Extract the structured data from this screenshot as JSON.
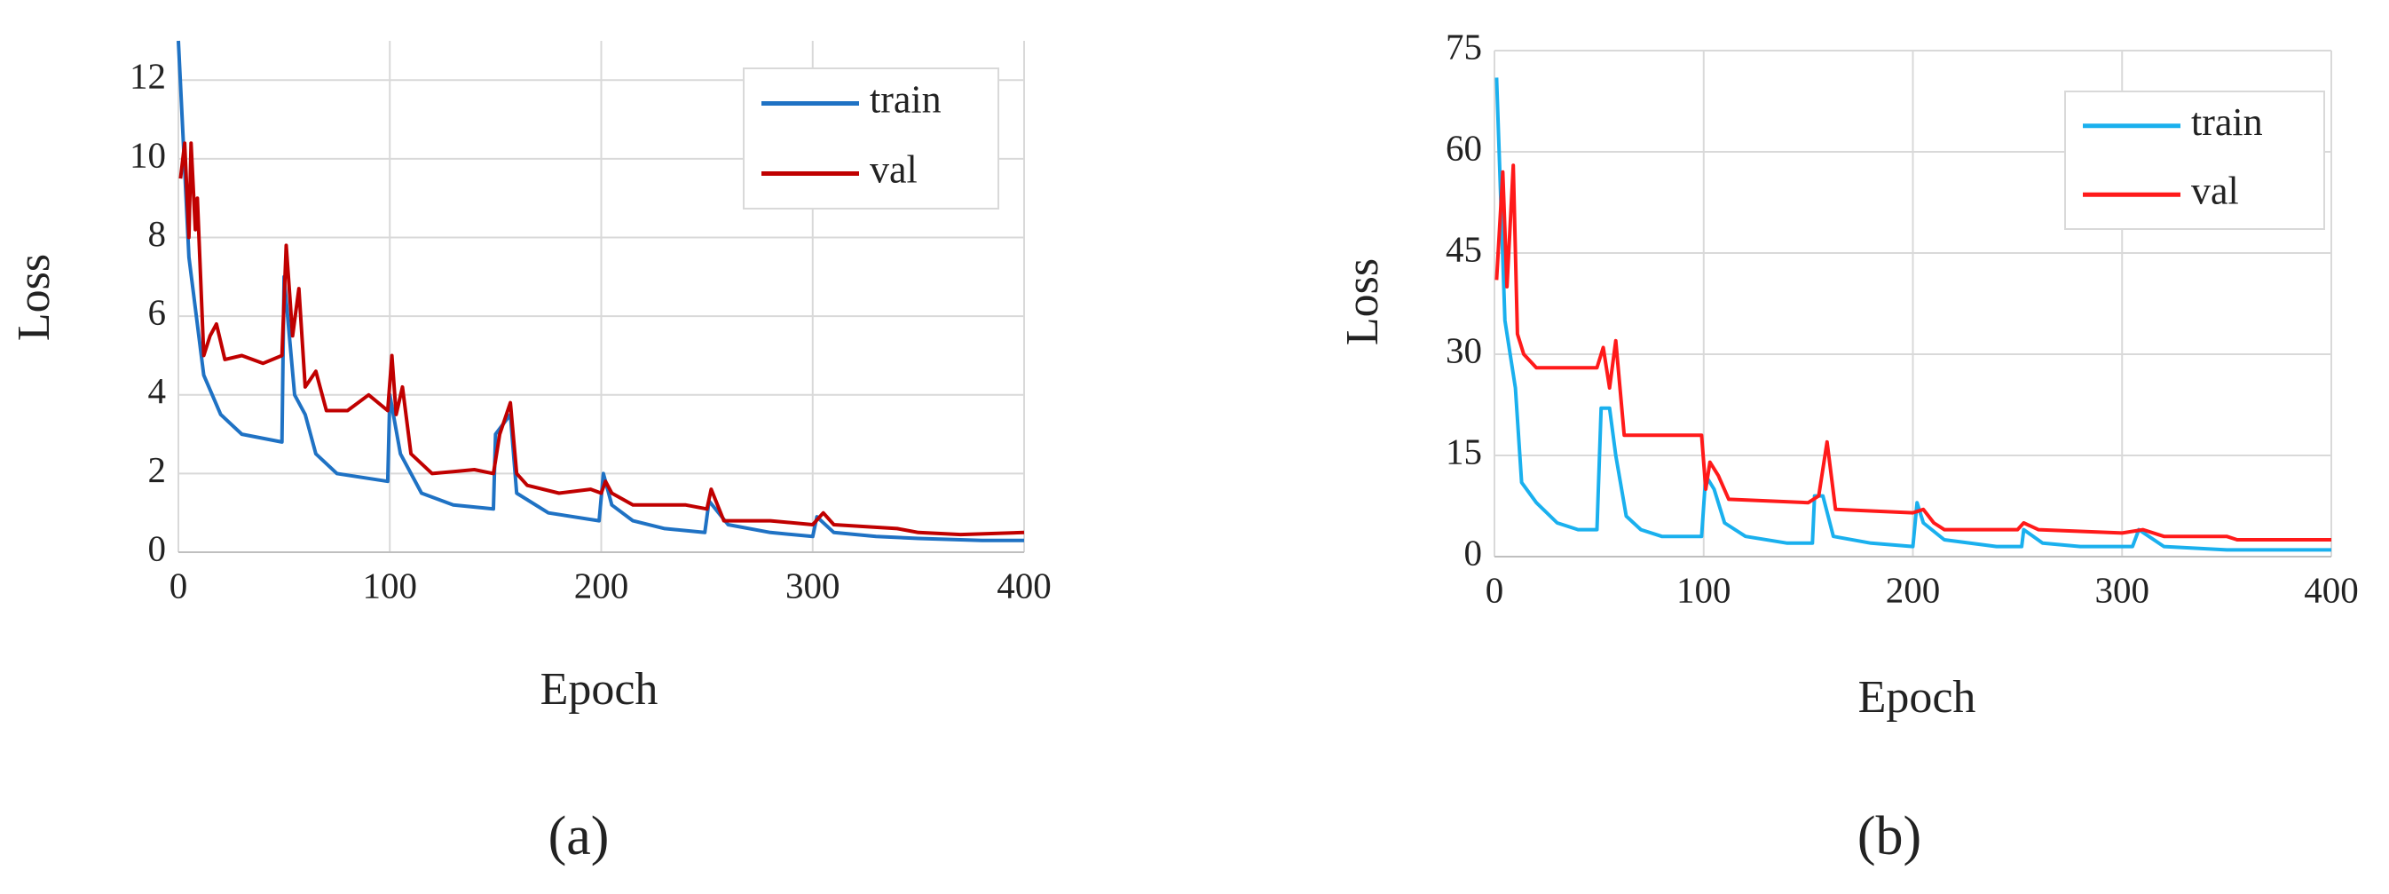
{
  "chart_data": [
    {
      "type": "line",
      "label": "(a)",
      "xlabel": "Epoch",
      "ylabel": "Loss",
      "xlim": [
        0,
        400
      ],
      "xticks": [
        0,
        100,
        200,
        300,
        400
      ],
      "ylim": [
        0,
        13
      ],
      "yticks": [
        0,
        2,
        4,
        6,
        8,
        10,
        12
      ],
      "grid": true,
      "legend": "upper right",
      "series": [
        {
          "name": "train",
          "color": "#1f72c4",
          "x": [
            0,
            5,
            12,
            20,
            30,
            49,
            50,
            55,
            60,
            65,
            75,
            99,
            100,
            105,
            115,
            130,
            149,
            150,
            157,
            160,
            175,
            199,
            201,
            205,
            215,
            230,
            249,
            251,
            260,
            280,
            300,
            302,
            310,
            330,
            350,
            380,
            400
          ],
          "values": [
            13,
            7.5,
            4.5,
            3.5,
            3,
            2.8,
            7,
            4,
            3.5,
            2.5,
            2,
            1.8,
            4,
            2.5,
            1.5,
            1.2,
            1.1,
            3,
            3.5,
            1.5,
            1,
            0.8,
            2,
            1.2,
            0.8,
            0.6,
            0.5,
            1.3,
            0.7,
            0.5,
            0.4,
            0.9,
            0.5,
            0.4,
            0.35,
            0.3,
            0.3
          ]
        },
        {
          "name": "val",
          "color": "#c00000",
          "x": [
            1,
            3,
            5,
            6,
            8,
            9,
            12,
            15,
            18,
            22,
            30,
            40,
            49,
            51,
            54,
            57,
            60,
            65,
            70,
            80,
            90,
            99,
            101,
            103,
            106,
            110,
            120,
            140,
            149,
            152,
            157,
            160,
            165,
            180,
            195,
            200,
            202,
            205,
            215,
            240,
            250,
            252,
            258,
            280,
            300,
            305,
            310,
            340,
            350,
            370,
            400
          ],
          "values": [
            9.5,
            10.4,
            8,
            10.4,
            8.2,
            9,
            5,
            5.5,
            5.8,
            4.9,
            5,
            4.8,
            5,
            7.8,
            5.5,
            6.7,
            4.2,
            4.6,
            3.6,
            3.6,
            4,
            3.6,
            5,
            3.5,
            4.2,
            2.5,
            2,
            2.1,
            2,
            3,
            3.8,
            2,
            1.7,
            1.5,
            1.6,
            1.5,
            1.8,
            1.5,
            1.2,
            1.2,
            1.1,
            1.6,
            0.8,
            0.8,
            0.7,
            1,
            0.7,
            0.6,
            0.5,
            0.45,
            0.5
          ]
        }
      ]
    },
    {
      "type": "line",
      "label": "(b)",
      "xlabel": "Epoch",
      "ylabel": "Loss",
      "xlim": [
        0,
        400
      ],
      "xticks": [
        0,
        100,
        200,
        300,
        400
      ],
      "ylim": [
        0,
        75
      ],
      "yticks": [
        0,
        15,
        30,
        45,
        60,
        75
      ],
      "grid": true,
      "legend": "upper right",
      "series": [
        {
          "name": "train",
          "color": "#1ab0ee",
          "x": [
            1,
            5,
            10,
            13,
            20,
            30,
            40,
            49,
            51,
            55,
            58,
            63,
            70,
            80,
            99,
            101,
            105,
            110,
            120,
            140,
            152,
            153,
            157,
            162,
            180,
            200,
            202,
            205,
            215,
            240,
            252,
            253,
            262,
            280,
            305,
            308,
            320,
            350,
            400
          ],
          "values": [
            71,
            35,
            25,
            11,
            8,
            5,
            4,
            4,
            22,
            22,
            15,
            6,
            4,
            3,
            3,
            12,
            10,
            5,
            3,
            2,
            2,
            9,
            9,
            3,
            2,
            1.5,
            8,
            5,
            2.5,
            1.5,
            1.5,
            4,
            2,
            1.5,
            1.5,
            4,
            1.5,
            1,
            1
          ]
        },
        {
          "name": "val",
          "color": "#ff1a1a",
          "x": [
            1,
            4,
            6,
            9,
            11,
            14,
            20,
            49,
            52,
            55,
            58,
            62,
            99,
            101,
            103,
            107,
            112,
            150,
            155,
            159,
            163,
            200,
            205,
            210,
            215,
            250,
            253,
            260,
            300,
            310,
            320,
            350,
            355,
            400
          ],
          "values": [
            41,
            57,
            40,
            58,
            33,
            30,
            28,
            28,
            31,
            25,
            32,
            18,
            18,
            10,
            14,
            12,
            8.5,
            8,
            9,
            17,
            7,
            6.5,
            7,
            5,
            4,
            4,
            5,
            4,
            3.5,
            4,
            3,
            3,
            2.5,
            2.5
          ]
        }
      ]
    }
  ]
}
